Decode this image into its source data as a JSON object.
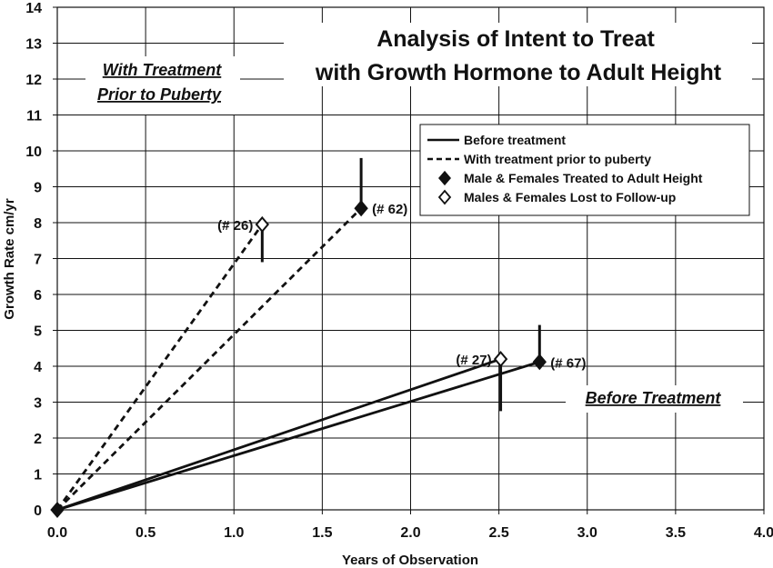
{
  "chart_data": {
    "type": "line",
    "title_lines": [
      "Analysis of Intent to Treat",
      "with Growth Hormone to Adult Height"
    ],
    "xlabel": "Years of Observation",
    "ylabel": "Growth Rate cm/yr",
    "xlim": [
      0,
      4.0
    ],
    "ylim": [
      0,
      14
    ],
    "xticks": [
      "0.0",
      "0.5",
      "1.0",
      "1.5",
      "2.0",
      "2.5",
      "3.0",
      "3.5",
      "4.0"
    ],
    "yticks": [
      "0",
      "1",
      "2",
      "3",
      "4",
      "5",
      "6",
      "7",
      "8",
      "9",
      "10",
      "11",
      "12",
      "13",
      "14"
    ],
    "grid": true,
    "legend_position": "right",
    "legend": [
      {
        "label": "Before treatment",
        "style": "solid"
      },
      {
        "label": "With treatment prior to puberty",
        "style": "dashed"
      },
      {
        "label": "Male & Females Treated to Adult Height",
        "style": "filled-diamond"
      },
      {
        "label": "Males & Females Lost to Follow-up",
        "style": "open-diamond"
      }
    ],
    "series": [
      {
        "group": "With treatment prior to puberty",
        "style": "dashed",
        "marker": "open-diamond",
        "label": "(# 26)",
        "x": [
          0,
          1.16
        ],
        "y": [
          0,
          7.95
        ],
        "error_low": 6.9,
        "error_high": 7.95
      },
      {
        "group": "With treatment prior to puberty",
        "style": "dashed",
        "marker": "filled-diamond",
        "label": "(# 62)",
        "x": [
          0,
          1.72
        ],
        "y": [
          0,
          8.4
        ],
        "error_low": 8.4,
        "error_high": 9.8
      },
      {
        "group": "Before treatment",
        "style": "solid",
        "marker": "open-diamond",
        "label": "(# 27)",
        "x": [
          0,
          2.51
        ],
        "y": [
          0,
          4.2
        ],
        "error_low": 2.75,
        "error_high": 4.2
      },
      {
        "group": "Before treatment",
        "style": "solid",
        "marker": "filled-diamond",
        "label": "(# 67)",
        "x": [
          0,
          2.73
        ],
        "y": [
          0,
          4.12
        ],
        "error_low": 4.12,
        "error_high": 5.15
      }
    ],
    "origin_marker": "filled-diamond",
    "annotations": {
      "with_treatment": [
        "With Treatment",
        "Prior to Puberty"
      ],
      "before_treatment": "Before Treatment"
    }
  }
}
